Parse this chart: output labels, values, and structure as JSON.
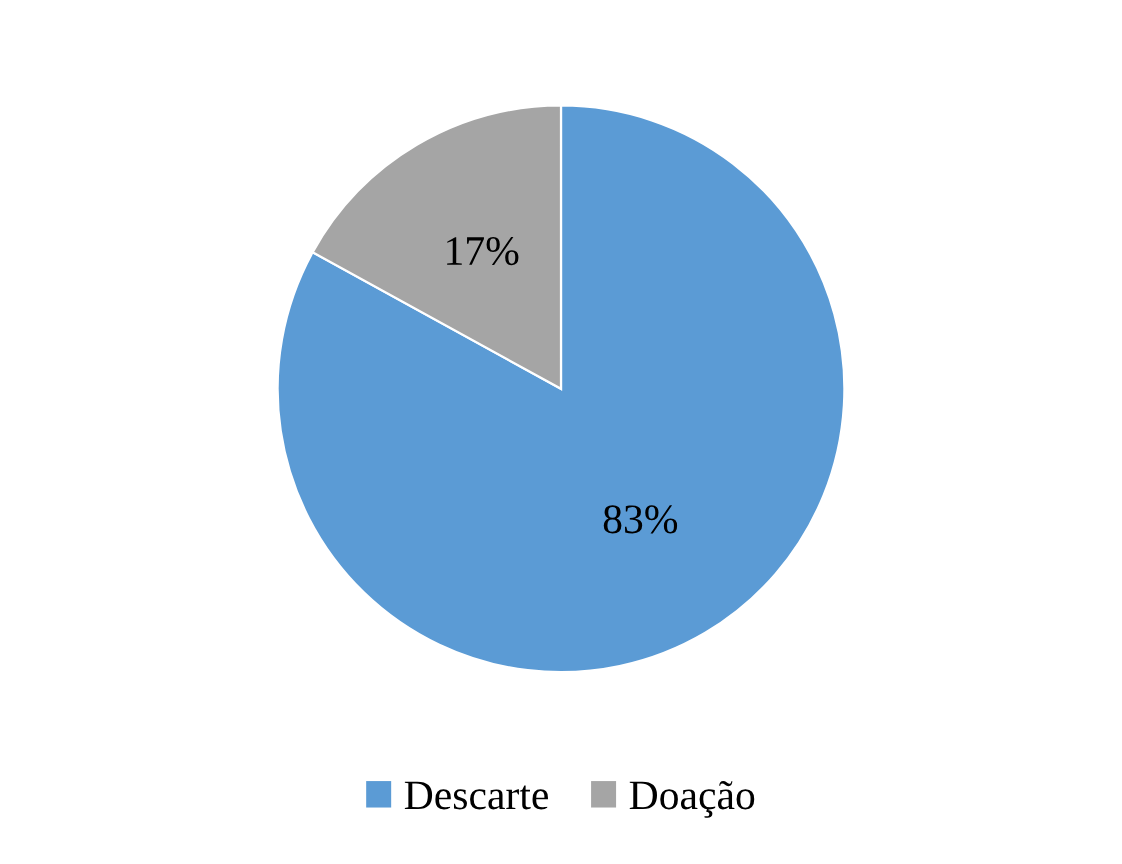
{
  "chart_data": {
    "type": "pie",
    "categories": [
      "Descarte",
      "Doação"
    ],
    "values": [
      83,
      17
    ],
    "value_labels": [
      "83%",
      "17%"
    ],
    "colors": [
      "#5b9bd5",
      "#a5a5a5"
    ],
    "legend": "bottom"
  }
}
